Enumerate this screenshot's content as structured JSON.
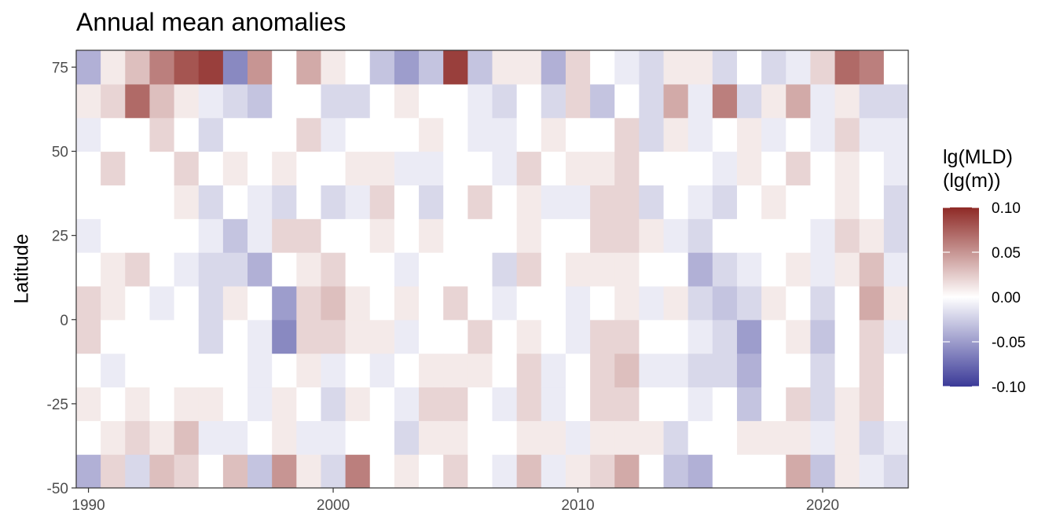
{
  "chart_data": {
    "type": "heatmap",
    "title": "Annual mean anomalies",
    "xlabel": "",
    "ylabel": "Latitude",
    "x_start_year": 1990,
    "x_end_year": 2023,
    "xlim": [
      1989.5,
      2023.5
    ],
    "ylim": [
      -50,
      80
    ],
    "x_ticks": [
      1990,
      2000,
      2010,
      2020
    ],
    "x_tick_labels": [
      "1990",
      "2000",
      "2010",
      "2020"
    ],
    "y_ticks": [
      -50,
      -25,
      0,
      25,
      50,
      75
    ],
    "y_tick_labels": [
      "-50",
      "-25",
      "0",
      "25",
      "50",
      "75"
    ],
    "lat_bands": [
      -50,
      -40,
      -30,
      -20,
      -10,
      0,
      10,
      20,
      30,
      40,
      50,
      60,
      70,
      80
    ],
    "values_note_rows": "rows are years 1990..2023, columns are latitude bands from -50 to 80 in 10 degree steps",
    "values": [
      [
        -0.04,
        0.0,
        0.01,
        0.0,
        0.02,
        0.02,
        0.0,
        -0.01,
        0.0,
        0.0,
        -0.01,
        0.01,
        -0.04
      ],
      [
        0.02,
        0.01,
        0.0,
        -0.01,
        0.0,
        0.01,
        0.01,
        0.0,
        0.0,
        0.02,
        0.0,
        0.02,
        0.01
      ],
      [
        -0.02,
        0.02,
        0.01,
        0.0,
        0.0,
        0.0,
        0.02,
        0.0,
        0.0,
        0.0,
        0.0,
        0.07,
        0.03
      ],
      [
        0.03,
        0.01,
        0.0,
        0.0,
        0.0,
        -0.01,
        0.0,
        0.0,
        0.0,
        0.0,
        0.02,
        0.03,
        0.06
      ],
      [
        0.02,
        0.03,
        0.01,
        0.0,
        0.0,
        0.0,
        -0.01,
        0.0,
        0.01,
        0.02,
        0.0,
        0.01,
        0.08
      ],
      [
        0.0,
        -0.01,
        0.01,
        0.0,
        -0.02,
        -0.02,
        -0.02,
        -0.01,
        -0.02,
        0.0,
        -0.02,
        -0.01,
        0.09
      ],
      [
        0.03,
        -0.01,
        0.0,
        0.0,
        0.0,
        0.01,
        -0.02,
        -0.03,
        0.0,
        0.01,
        0.0,
        -0.02,
        -0.06
      ],
      [
        -0.03,
        0.0,
        -0.01,
        -0.01,
        -0.01,
        0.0,
        -0.04,
        -0.01,
        -0.01,
        0.0,
        0.0,
        -0.03,
        0.05
      ],
      [
        0.05,
        0.01,
        0.01,
        0.0,
        -0.06,
        -0.05,
        0.0,
        0.02,
        -0.02,
        0.01,
        0.0,
        0.0,
        0.0
      ],
      [
        0.01,
        -0.01,
        0.0,
        0.01,
        0.02,
        0.02,
        0.01,
        0.02,
        0.0,
        0.0,
        0.02,
        0.0,
        0.04
      ],
      [
        -0.02,
        -0.01,
        -0.02,
        -0.01,
        0.02,
        0.03,
        0.02,
        0.0,
        -0.02,
        0.0,
        -0.01,
        -0.02,
        0.01
      ],
      [
        0.06,
        0.0,
        0.01,
        0.0,
        0.01,
        0.01,
        0.0,
        0.0,
        -0.01,
        0.01,
        0.0,
        -0.02,
        0.0
      ],
      [
        0.0,
        0.0,
        0.0,
        -0.01,
        0.01,
        0.0,
        0.0,
        0.01,
        0.02,
        0.01,
        0.0,
        0.0,
        -0.03
      ],
      [
        0.01,
        -0.02,
        -0.01,
        0.0,
        -0.01,
        0.01,
        -0.01,
        0.0,
        0.0,
        -0.01,
        0.0,
        0.01,
        -0.05
      ],
      [
        0.0,
        0.01,
        0.02,
        0.01,
        0.0,
        0.0,
        0.0,
        0.01,
        -0.02,
        -0.01,
        0.01,
        0.0,
        -0.03
      ],
      [
        0.02,
        0.01,
        0.02,
        0.01,
        0.0,
        0.02,
        0.0,
        0.0,
        0.0,
        0.0,
        0.0,
        0.0,
        0.09
      ],
      [
        0.0,
        0.0,
        0.0,
        0.01,
        0.02,
        0.0,
        0.0,
        0.0,
        0.02,
        0.0,
        -0.01,
        -0.01,
        -0.03
      ],
      [
        -0.01,
        0.0,
        -0.01,
        0.0,
        0.0,
        -0.01,
        -0.02,
        0.0,
        0.0,
        -0.01,
        -0.01,
        -0.02,
        0.01
      ],
      [
        0.03,
        0.01,
        0.02,
        0.02,
        0.01,
        0.0,
        0.02,
        0.01,
        0.01,
        0.02,
        0.0,
        0.0,
        0.01
      ],
      [
        -0.01,
        0.01,
        -0.01,
        -0.01,
        0.0,
        0.0,
        0.0,
        0.0,
        -0.01,
        0.0,
        0.01,
        -0.02,
        -0.04
      ],
      [
        0.01,
        -0.01,
        0.0,
        0.0,
        -0.01,
        -0.01,
        0.01,
        0.0,
        -0.01,
        0.01,
        0.0,
        0.02,
        0.02
      ],
      [
        0.02,
        0.01,
        0.02,
        0.02,
        0.02,
        0.0,
        0.01,
        0.02,
        0.02,
        0.01,
        0.0,
        -0.03,
        0.0
      ],
      [
        0.04,
        0.01,
        0.02,
        0.03,
        0.02,
        0.01,
        0.01,
        0.02,
        0.02,
        0.02,
        0.02,
        0.0,
        -0.01
      ],
      [
        0.0,
        0.01,
        0.0,
        -0.01,
        0.0,
        -0.01,
        0.0,
        0.01,
        -0.02,
        0.0,
        -0.02,
        -0.02,
        -0.02
      ],
      [
        -0.03,
        -0.02,
        0.0,
        -0.01,
        0.0,
        0.01,
        0.0,
        -0.01,
        0.0,
        0.0,
        0.01,
        0.04,
        0.01
      ],
      [
        -0.04,
        0.0,
        -0.01,
        -0.02,
        -0.01,
        -0.02,
        -0.04,
        -0.02,
        -0.01,
        0.0,
        -0.01,
        -0.01,
        0.01
      ],
      [
        0.0,
        0.0,
        0.0,
        -0.02,
        -0.02,
        -0.03,
        -0.02,
        0.0,
        -0.02,
        -0.01,
        0.0,
        0.06,
        -0.02
      ],
      [
        0.0,
        0.01,
        -0.03,
        -0.04,
        -0.05,
        -0.02,
        -0.01,
        0.0,
        0.0,
        0.01,
        0.01,
        -0.02,
        0.0
      ],
      [
        0.0,
        0.01,
        0.0,
        0.0,
        0.0,
        0.01,
        0.0,
        0.0,
        0.01,
        0.0,
        -0.01,
        0.01,
        -0.02
      ],
      [
        0.04,
        0.01,
        0.02,
        0.0,
        0.01,
        0.0,
        0.01,
        0.0,
        0.0,
        0.02,
        0.0,
        0.04,
        -0.01
      ],
      [
        -0.03,
        -0.01,
        -0.02,
        -0.02,
        -0.03,
        -0.02,
        -0.01,
        -0.01,
        0.0,
        0.0,
        -0.01,
        -0.01,
        0.02
      ],
      [
        0.01,
        0.01,
        0.01,
        0.0,
        0.0,
        0.0,
        0.01,
        0.02,
        0.01,
        0.01,
        0.02,
        0.01,
        0.07
      ],
      [
        -0.01,
        -0.02,
        0.02,
        0.02,
        0.02,
        0.04,
        0.03,
        0.01,
        0.0,
        0.0,
        -0.01,
        -0.02,
        0.06
      ],
      [
        -0.02,
        -0.01,
        0.0,
        0.0,
        -0.01,
        0.01,
        -0.01,
        -0.02,
        -0.02,
        -0.01,
        -0.01,
        -0.02,
        0.0
      ]
    ],
    "color_scale": {
      "title_line1": "lg(MLD)",
      "title_line2": "(lg(m))",
      "min": -0.1,
      "max": 0.1,
      "ticks": [
        "0.10",
        "0.05",
        "0.00",
        "-0.05",
        "-0.10"
      ],
      "tick_values": [
        0.1,
        0.05,
        0.0,
        -0.05,
        -0.1
      ],
      "low_color": "#3b3a98",
      "mid_color": "#ffffff",
      "high_color": "#8e2a26"
    },
    "grid": false,
    "legend_position": "right"
  }
}
